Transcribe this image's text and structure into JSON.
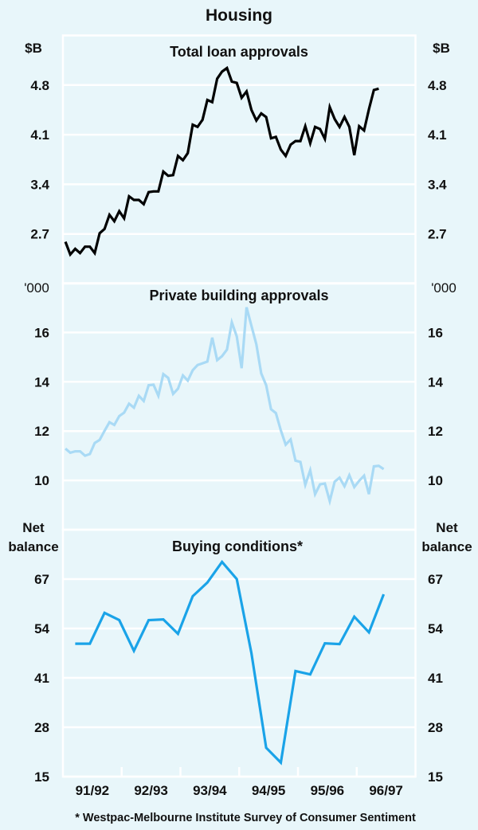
{
  "title": "Housing",
  "footnote": "* Westpac-Melbourne Institute Survey of Consumer Sentiment",
  "chart_data": [
    {
      "type": "line",
      "title": "Total loan approvals",
      "ylabel_left": "$B",
      "ylabel_right": "$B",
      "ylim": [
        2.0,
        5.5
      ],
      "yticks": [
        2.7,
        3.4,
        4.1,
        4.8
      ],
      "ytick_labels": [
        "2.7",
        "3.4",
        "4.1",
        "4.8"
      ],
      "frequency": "monthly",
      "start": "1991-07",
      "series": [
        {
          "name": "Total loan approvals",
          "color": "#000000",
          "values": [
            2.59,
            2.41,
            2.49,
            2.43,
            2.52,
            2.52,
            2.43,
            2.71,
            2.77,
            2.97,
            2.88,
            3.02,
            2.92,
            3.23,
            3.18,
            3.18,
            3.12,
            3.29,
            3.3,
            3.3,
            3.58,
            3.52,
            3.53,
            3.8,
            3.74,
            3.84,
            4.24,
            4.21,
            4.31,
            4.59,
            4.56,
            4.89,
            4.99,
            5.04,
            4.85,
            4.83,
            4.62,
            4.71,
            4.45,
            4.3,
            4.4,
            4.35,
            4.05,
            4.07,
            3.89,
            3.8,
            3.96,
            4.01,
            4.01,
            4.22,
            3.98,
            4.21,
            4.18,
            4.04,
            4.49,
            4.32,
            4.21,
            4.35,
            4.21,
            3.81,
            4.22,
            4.16,
            4.46,
            4.73,
            4.75
          ]
        }
      ],
      "grid": true
    },
    {
      "type": "line",
      "title": "Private building approvals",
      "ylabel_left": "'000",
      "ylabel_right": "'000",
      "ylim": [
        8,
        18
      ],
      "yticks": [
        10,
        12,
        14,
        16
      ],
      "ytick_labels": [
        "10",
        "12",
        "14",
        "16"
      ],
      "frequency": "monthly",
      "start": "1991-07",
      "series": [
        {
          "name": "Private building approvals",
          "color": "#a9daf5",
          "values": [
            11.29,
            11.12,
            11.18,
            11.18,
            11.0,
            11.07,
            11.52,
            11.64,
            12.01,
            12.36,
            12.25,
            12.61,
            12.75,
            13.11,
            12.95,
            13.43,
            13.22,
            13.86,
            13.88,
            13.43,
            14.31,
            14.16,
            13.51,
            13.72,
            14.26,
            14.05,
            14.47,
            14.68,
            14.75,
            14.82,
            15.79,
            14.88,
            15.04,
            15.31,
            16.41,
            15.84,
            14.55,
            17.02,
            16.27,
            15.52,
            14.34,
            13.86,
            12.89,
            12.73,
            12.03,
            11.45,
            11.66,
            10.8,
            10.75,
            9.82,
            10.41,
            9.44,
            9.84,
            9.87,
            9.16,
            9.95,
            10.11,
            9.76,
            10.21,
            9.73,
            9.98,
            10.19,
            9.44,
            10.57,
            10.59,
            10.46
          ]
        }
      ],
      "grid": true
    },
    {
      "type": "line",
      "title": "Buying conditions*",
      "ylabel_left": [
        "Net",
        "balance"
      ],
      "ylabel_right": [
        "Net",
        "balance"
      ],
      "ylim": [
        15,
        80
      ],
      "yticks": [
        15,
        28,
        41,
        54,
        67
      ],
      "ytick_labels": [
        "15",
        "28",
        "41",
        "54",
        "67"
      ],
      "frequency": "quarterly",
      "start": "1991-09",
      "series": [
        {
          "name": "Buying conditions",
          "color": "#1aa3e8",
          "values": [
            50.0,
            50.0,
            58.1,
            56.2,
            48.1,
            56.2,
            56.4,
            52.6,
            62.5,
            66.1,
            71.5,
            67.0,
            47.5,
            22.6,
            18.7,
            42.8,
            41.9,
            50.1,
            49.9,
            57.1,
            53.0,
            63.0
          ]
        }
      ],
      "grid": true
    }
  ],
  "x_axis": {
    "range_months_from": "1991-07",
    "range_months_count": 72,
    "tick_labels": [
      "91/92",
      "92/93",
      "93/94",
      "94/95",
      "95/96",
      "96/97"
    ]
  }
}
